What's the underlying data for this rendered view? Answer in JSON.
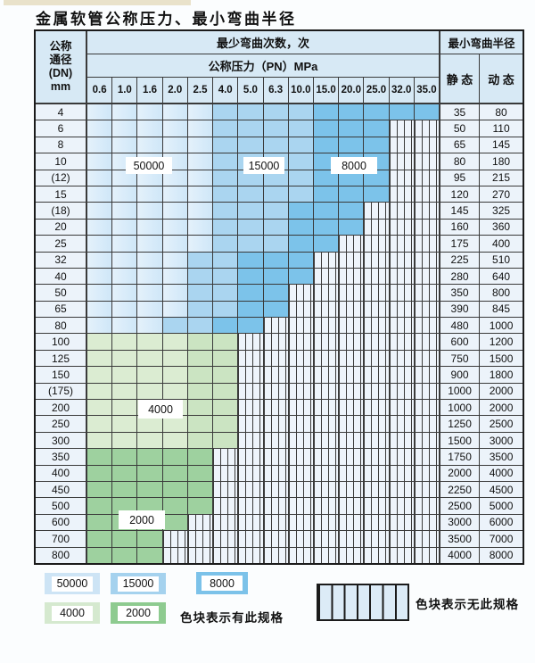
{
  "title": "金属软管公称压力、最小弯曲半径",
  "table": {
    "header": {
      "dn_lines": [
        "公称",
        "通径",
        "(DN)",
        "mm"
      ],
      "bend_count_label": "最少弯曲次数，次",
      "pressure_label": "公称压力（PN）MPa",
      "pressures": [
        "0.6",
        "1.0",
        "1.6",
        "2.0",
        "2.5",
        "4.0",
        "5.0",
        "6.3",
        "10.0",
        "15.0",
        "20.0",
        "25.0",
        "32.0",
        "35.0"
      ],
      "radius_label": "最小弯曲半径",
      "static_label": "静 态",
      "dynamic_label": "动 态"
    },
    "rows": [
      {
        "dn": "4",
        "cells": "LLLLLMMMMDDDDD",
        "static": "35",
        "dynamic": "80"
      },
      {
        "dn": "6",
        "cells": "LLLLLMMMMDDDNN",
        "static": "50",
        "dynamic": "110"
      },
      {
        "dn": "8",
        "cells": "LLLLLMMMMDDDNN",
        "static": "65",
        "dynamic": "145"
      },
      {
        "dn": "10",
        "cells": "LLLLLMMMMDDDNN",
        "static": "80",
        "dynamic": "180"
      },
      {
        "dn": "(12)",
        "cells": "LLLLLMMMMDDDNN",
        "static": "95",
        "dynamic": "215"
      },
      {
        "dn": "15",
        "cells": "LLLLLMMMMDDDNN",
        "static": "120",
        "dynamic": "270"
      },
      {
        "dn": "(18)",
        "cells": "LLLLLMMMDDDNNN",
        "static": "145",
        "dynamic": "325"
      },
      {
        "dn": "20",
        "cells": "LLLLLMMMDDDNNN",
        "static": "160",
        "dynamic": "360"
      },
      {
        "dn": "25",
        "cells": "LLLLLMMMDDNNNN",
        "static": "175",
        "dynamic": "400"
      },
      {
        "dn": "32",
        "cells": "LLLLMMDDDNNNNN",
        "static": "225",
        "dynamic": "510"
      },
      {
        "dn": "40",
        "cells": "LLLLMMDDDNNNNN",
        "static": "280",
        "dynamic": "640"
      },
      {
        "dn": "50",
        "cells": "LLLLMMDDNNNNNN",
        "static": "350",
        "dynamic": "800"
      },
      {
        "dn": "65",
        "cells": "LLLLMMDDNNNNNN",
        "static": "390",
        "dynamic": "845"
      },
      {
        "dn": "80",
        "cells": "LLLMMDDNNNNNNN",
        "static": "480",
        "dynamic": "1000"
      },
      {
        "dn": "100",
        "cells": "GGGGFFNNNNNNNN",
        "static": "600",
        "dynamic": "1200"
      },
      {
        "dn": "125",
        "cells": "GGGGFFNNNNNNNN",
        "static": "750",
        "dynamic": "1500"
      },
      {
        "dn": "150",
        "cells": "GGGGFFNNNNNNNN",
        "static": "900",
        "dynamic": "1800"
      },
      {
        "dn": "(175)",
        "cells": "GGGGFFNNNNNNNN",
        "static": "1000",
        "dynamic": "2000"
      },
      {
        "dn": "200",
        "cells": "GGGGFFNNNNNNNN",
        "static": "1000",
        "dynamic": "2000"
      },
      {
        "dn": "250",
        "cells": "GGGGFFNNNNNNNN",
        "static": "1250",
        "dynamic": "2500"
      },
      {
        "dn": "300",
        "cells": "GGGGFFNNNNNNNN",
        "static": "1500",
        "dynamic": "3000"
      },
      {
        "dn": "350",
        "cells": "HHHHHNNNNNNNNN",
        "static": "1750",
        "dynamic": "3500"
      },
      {
        "dn": "400",
        "cells": "HHHHHNNNNNNNNN",
        "static": "2000",
        "dynamic": "4000"
      },
      {
        "dn": "450",
        "cells": "HHHHHNNNNNNNNN",
        "static": "2250",
        "dynamic": "4500"
      },
      {
        "dn": "500",
        "cells": "HHHHHNNNNNNNNN",
        "static": "2500",
        "dynamic": "5000"
      },
      {
        "dn": "600",
        "cells": "HHHHNNNNNNNNNN",
        "static": "3000",
        "dynamic": "6000"
      },
      {
        "dn": "700",
        "cells": "HHHNNNNNNNNNNN",
        "static": "3500",
        "dynamic": "7000"
      },
      {
        "dn": "800",
        "cells": "HHHNNNNNNNNNNN",
        "static": "4000",
        "dynamic": "8000"
      }
    ]
  },
  "zone_labels": [
    {
      "value": "50000"
    },
    {
      "value": "15000"
    },
    {
      "value": "8000"
    },
    {
      "value": "4000"
    },
    {
      "value": "2000"
    }
  ],
  "legend": {
    "available": [
      {
        "value": "50000",
        "color": "#cde4f5"
      },
      {
        "value": "15000",
        "color": "#a5d2ee"
      },
      {
        "value": "8000",
        "color": "#7cc2e9"
      },
      {
        "value": "4000",
        "color": "#d5e9cf"
      },
      {
        "value": "2000",
        "color": "#8ecb90"
      }
    ],
    "available_note": "色块表示有此规格",
    "unavailable_note": "色块表示无此规格"
  },
  "colors": {
    "zone_50000": "#cfe7f8",
    "zone_50000_light": "#e4f1fb",
    "zone_15000": "#aad5f0",
    "zone_8000": "#7cc3ea",
    "zone_4000_light": "#dbecd2",
    "zone_4000_deep": "#cbe4c2",
    "zone_2000": "#9ed19f",
    "no_spec_bg": "#eef4fb",
    "grid": "#3a3a3a",
    "header_bg": "#d7e9f5",
    "label_cell_bg": "#ecf3fa"
  }
}
